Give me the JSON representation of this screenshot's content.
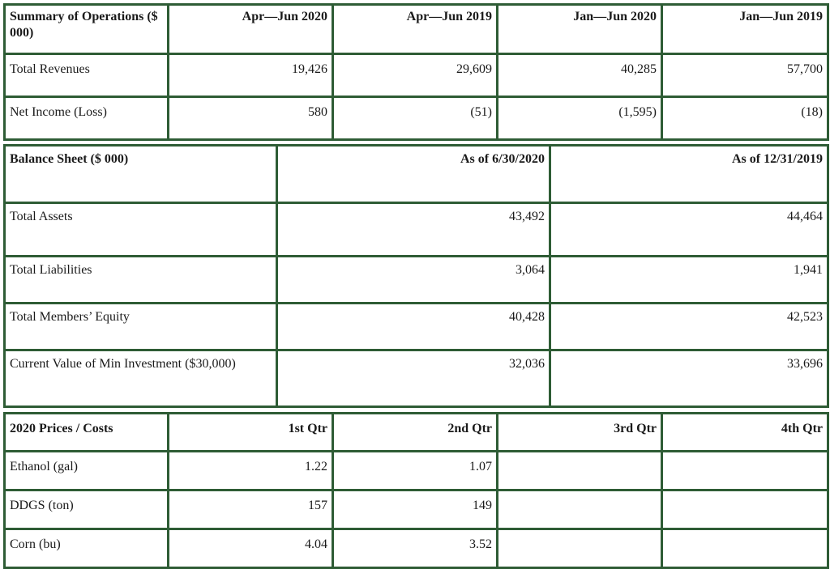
{
  "operations": {
    "header": [
      "Summary of Operations ($ 000)",
      "Apr—Jun 2020",
      "Apr—Jun 2019",
      "Jan—Jun 2020",
      "Jan—Jun 2019"
    ],
    "rows": [
      [
        "Total Revenues",
        "19,426",
        "29,609",
        "40,285",
        "57,700"
      ],
      [
        "Net Income (Loss)",
        "580",
        "(51)",
        "(1,595)",
        "(18)"
      ]
    ]
  },
  "balance_sheet": {
    "header": [
      "Balance Sheet ($ 000)",
      "As of 6/30/2020",
      "As of 12/31/2019"
    ],
    "rows": [
      [
        "Total Assets",
        "43,492",
        "44,464"
      ],
      [
        "Total Liabilities",
        "3,064",
        "1,941"
      ],
      [
        "Total Members’ Equity",
        "40,428",
        "42,523"
      ],
      [
        "Current Value of Min Investment ($30,000)",
        "32,036",
        "33,696"
      ]
    ]
  },
  "prices": {
    "header": [
      "2020 Prices / Costs",
      "1st Qtr",
      "2nd Qtr",
      "3rd Qtr",
      "4th Qtr"
    ],
    "rows": [
      [
        "Ethanol (gal)",
        "1.22",
        "1.07",
        "",
        ""
      ],
      [
        "DDGS (ton)",
        "157",
        "149",
        "",
        ""
      ],
      [
        "Corn (bu)",
        "4.04",
        "3.52",
        "",
        ""
      ]
    ]
  },
  "colors": {
    "border": "#2e5c35",
    "text": "#1a1a1a"
  }
}
